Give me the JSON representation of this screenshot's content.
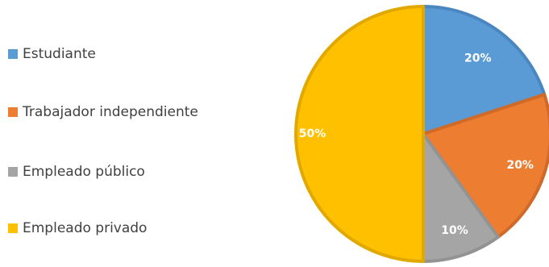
{
  "chart_data": {
    "type": "pie",
    "categories": [
      "Estudiante",
      "Trabajador independiente",
      "Empleado público",
      "Empleado privado"
    ],
    "values": [
      20,
      20,
      10,
      50
    ],
    "labels": [
      "20%",
      "20%",
      "10%",
      "50%"
    ],
    "colors": [
      "#5B9BD5",
      "#ED7D31",
      "#A5A5A5",
      "#FFC000"
    ],
    "legend_position": "left"
  }
}
